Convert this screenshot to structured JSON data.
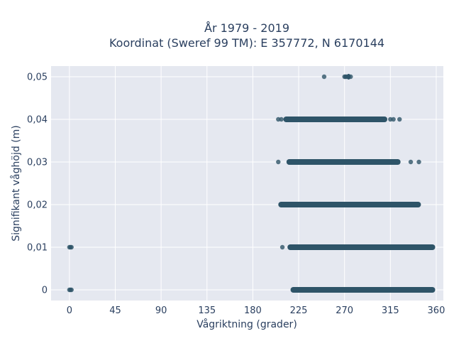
{
  "chart_data": {
    "type": "scatter",
    "title_line1": "År 1979 - 2019",
    "title_line2": "Koordinat (Sweref 99 TM): E 357772, N 6170144",
    "xlabel": "Vågriktning (grader)",
    "ylabel": "Signifikant våghöjd (m)",
    "xlim": [
      -18,
      367
    ],
    "ylim": [
      -0.0025,
      0.0525
    ],
    "xticks": [
      0,
      45,
      90,
      135,
      180,
      225,
      270,
      315,
      360
    ],
    "xtick_labels": [
      "0",
      "45",
      "90",
      "135",
      "180",
      "225",
      "270",
      "315",
      "360"
    ],
    "yticks": [
      0,
      0.01,
      0.02,
      0.03,
      0.04,
      0.05
    ],
    "ytick_labels": [
      "0",
      "0,01",
      "0,02",
      "0,03",
      "0,04",
      "0,05"
    ],
    "grid": true,
    "marker_color": "#2e5468",
    "plot_bg": "#e5e8f0",
    "series": [
      {
        "bands": [
          {
            "y": 0.05,
            "x_start": 272,
            "x_end": 276,
            "isolated": [
              250,
              270,
              271,
              272,
              274,
              276
            ]
          },
          {
            "y": 0.04,
            "x_start": 210,
            "x_end": 312,
            "isolated": [
              205,
              208,
              315,
              318,
              324
            ]
          },
          {
            "y": 0.03,
            "x_start": 213,
            "x_end": 325,
            "isolated": [
              205,
              335,
              343
            ]
          },
          {
            "y": 0.02,
            "x_start": 205,
            "x_end": 345,
            "isolated": []
          },
          {
            "y": 0.01,
            "x_start": 214,
            "x_end": 359,
            "isolated": [
              209,
              0,
              1,
              2
            ]
          },
          {
            "y": 0.0,
            "x_start": 217,
            "x_end": 359,
            "isolated": [
              0,
              1,
              2
            ]
          }
        ]
      }
    ]
  }
}
